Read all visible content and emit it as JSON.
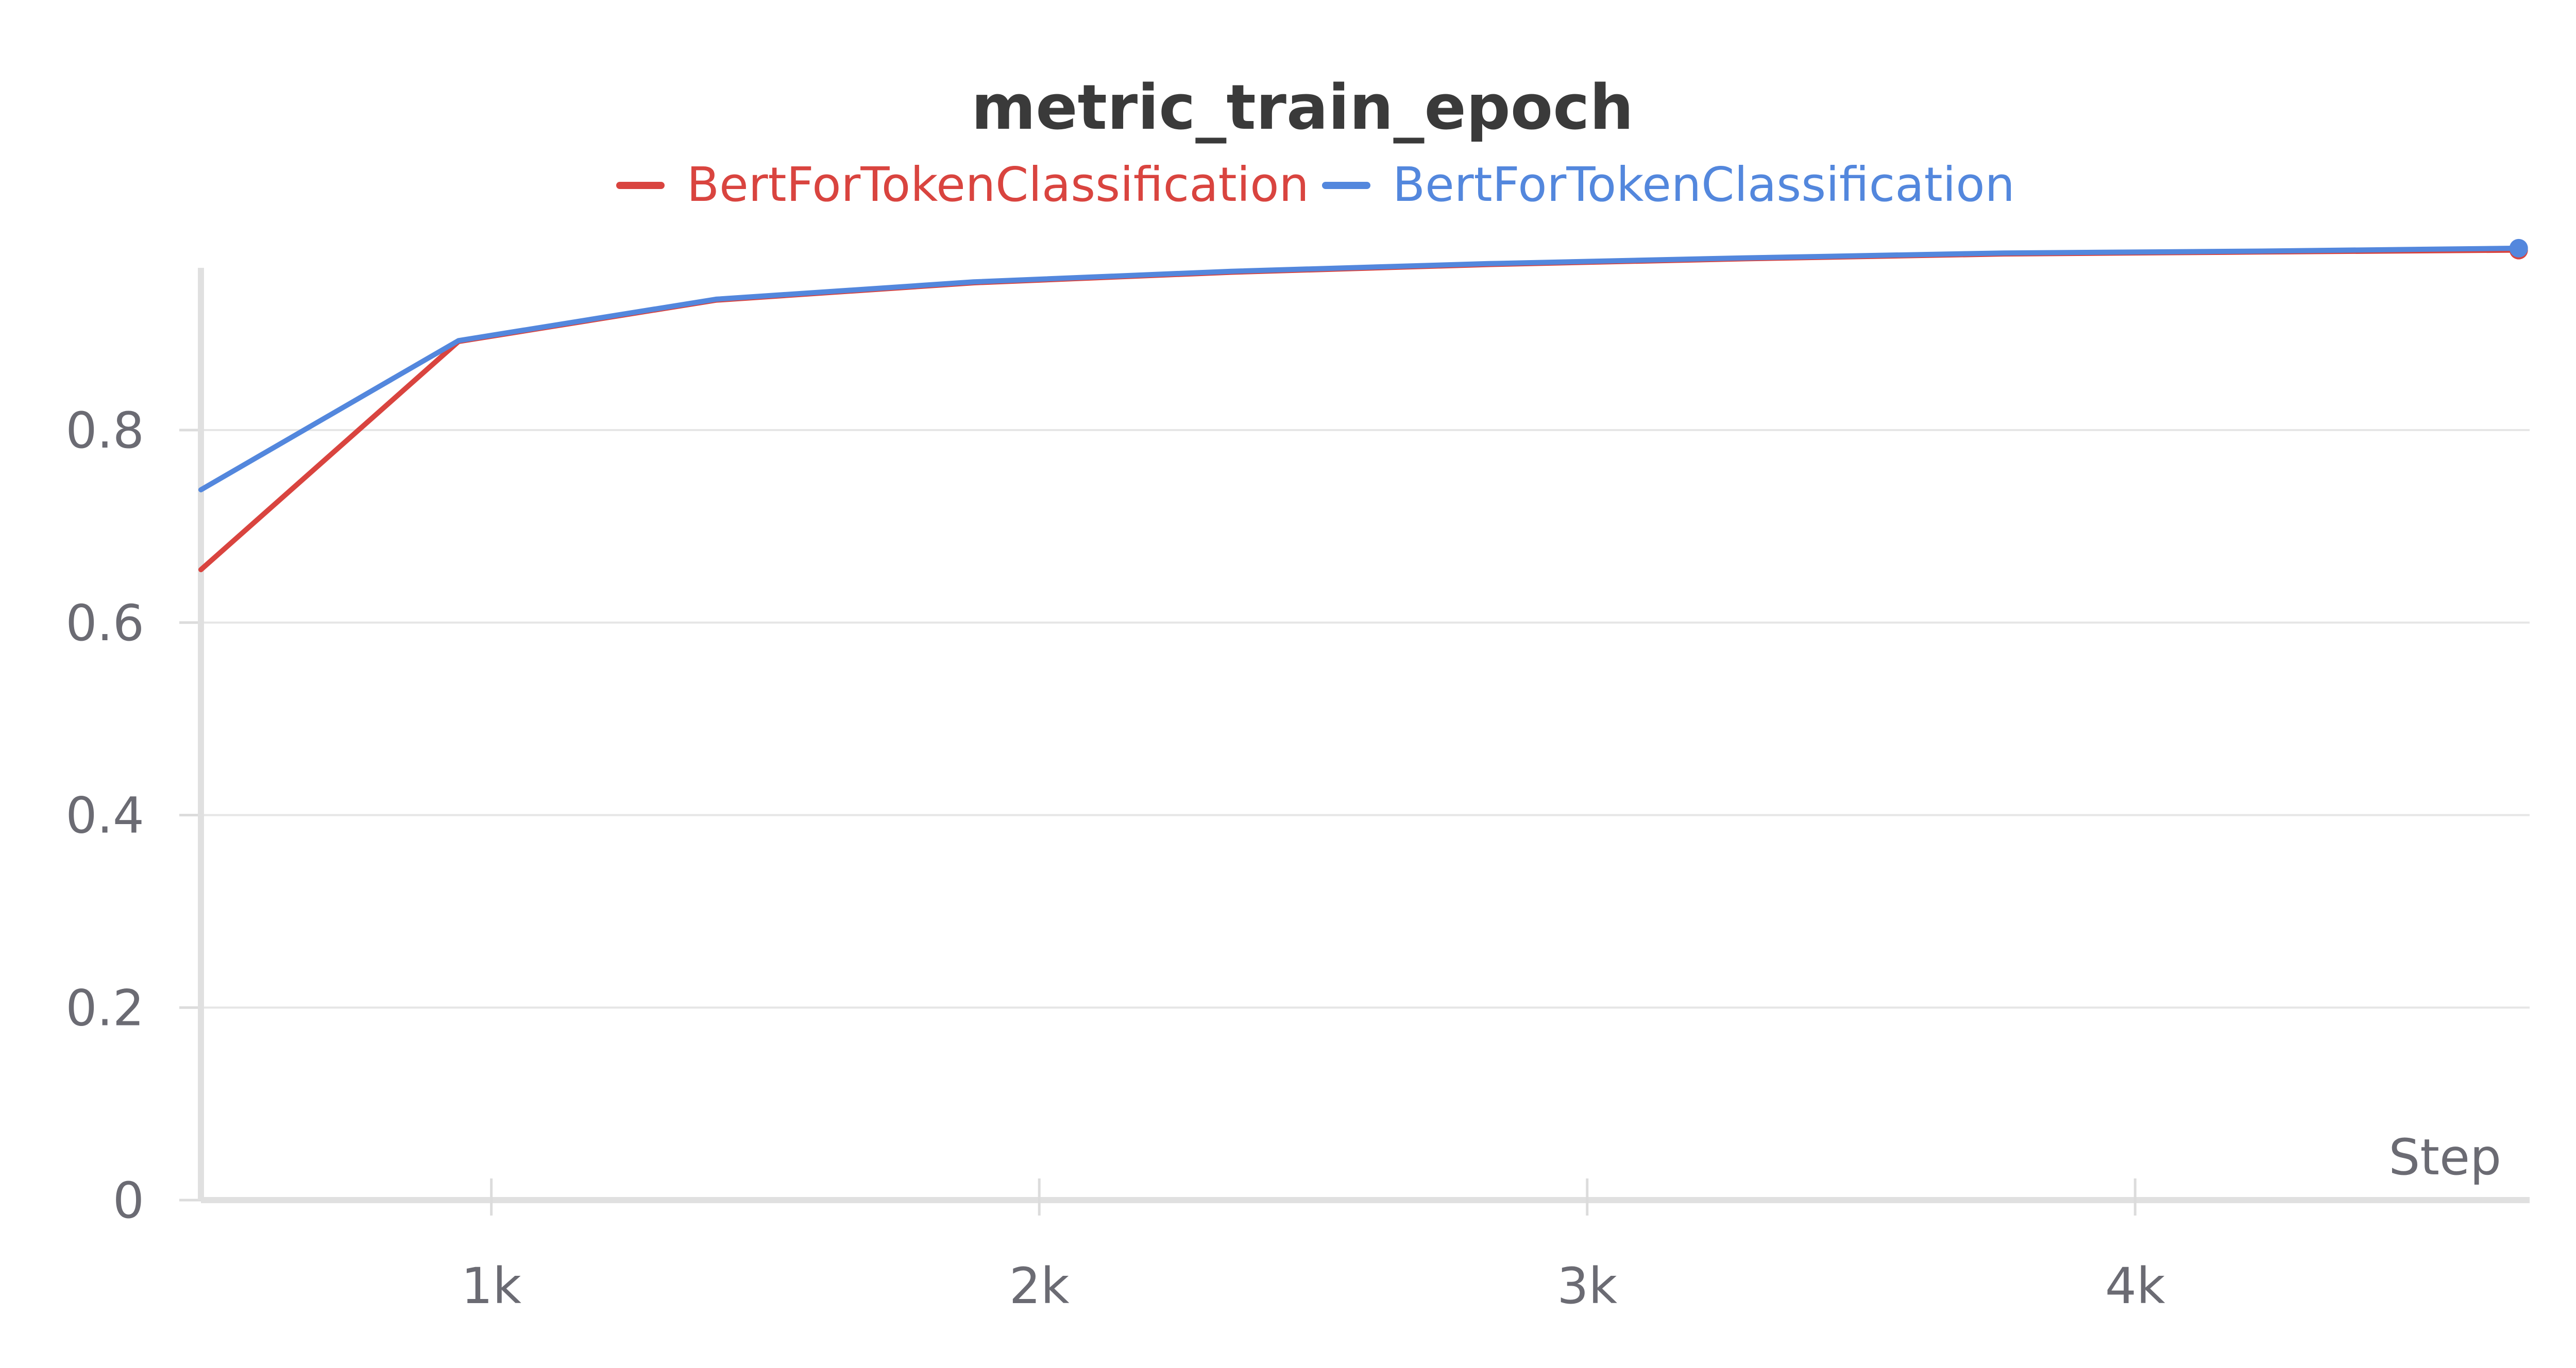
{
  "chart_data": {
    "type": "line",
    "title": "metric_train_epoch",
    "xlabel": "Step",
    "ylabel": "",
    "xlim": [
      470,
      4720
    ],
    "ylim": [
      0,
      0.99
    ],
    "x_ticks": [
      1000,
      2000,
      3000,
      4000
    ],
    "x_tick_labels": [
      "1k",
      "2k",
      "3k",
      "4k"
    ],
    "y_ticks": [
      0,
      0.2,
      0.4,
      0.6,
      0.8
    ],
    "y_tick_labels": [
      "0",
      "0.2",
      "0.4",
      "0.6",
      "0.8"
    ],
    "grid": true,
    "legend_position": "top",
    "series": [
      {
        "name": "BertForTokenClassification",
        "color": "#d9443f",
        "x": [
          470,
          940,
          1410,
          1880,
          2350,
          2820,
          3290,
          3760,
          4230,
          4700
        ],
        "y": [
          0.655,
          0.892,
          0.935,
          0.953,
          0.964,
          0.972,
          0.978,
          0.983,
          0.985,
          0.987
        ]
      },
      {
        "name": "BertForTokenClassification",
        "color": "#5387dd",
        "x": [
          470,
          940,
          1410,
          1880,
          2350,
          2820,
          3290,
          3760,
          4230,
          4700
        ],
        "y": [
          0.738,
          0.893,
          0.936,
          0.954,
          0.965,
          0.973,
          0.979,
          0.984,
          0.986,
          0.989
        ]
      }
    ]
  }
}
